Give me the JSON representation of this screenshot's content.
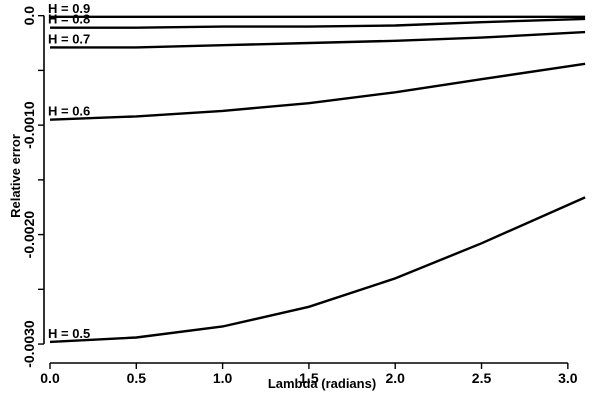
{
  "chart_data": {
    "type": "line",
    "title": "",
    "xlabel": "Lambda (radians)",
    "ylabel": "Relative error",
    "xlim": [
      0,
      3.14
    ],
    "ylim": [
      -0.0031,
      7e-05
    ],
    "x_ticks": [
      0.0,
      0.5,
      1.0,
      1.5,
      2.0,
      2.5,
      3.0
    ],
    "x_tick_labels": [
      "0.0",
      "0.5",
      "1.0",
      "1.5",
      "2.0",
      "2.5",
      "3.0"
    ],
    "y_ticks": [
      0.0,
      -0.0005,
      -0.001,
      -0.0015,
      -0.002,
      -0.0025,
      -0.003
    ],
    "y_tick_labels": [
      "0.0",
      "",
      "-0.0010",
      "",
      "-0.0020",
      "",
      "-0.0030"
    ],
    "grid": false,
    "legend": "none",
    "series": [
      {
        "name": "H = 0.9",
        "x": [
          0.0,
          0.5,
          1.0,
          1.5,
          2.0,
          2.5,
          3.1
        ],
        "y": [
          -1e-05,
          -1e-05,
          -1e-05,
          -1e-05,
          -1e-05,
          -1e-05,
          -1e-05
        ]
      },
      {
        "name": "H = 0.8",
        "x": [
          0.0,
          0.5,
          1.0,
          1.5,
          2.0,
          2.5,
          3.1
        ],
        "y": [
          -0.00011,
          -0.00011,
          -0.0001,
          -0.0001,
          -9e-05,
          -6e-05,
          -3e-05
        ]
      },
      {
        "name": "H = 0.7",
        "x": [
          0.0,
          0.5,
          1.0,
          1.5,
          2.0,
          2.5,
          3.1
        ],
        "y": [
          -0.00029,
          -0.00029,
          -0.00027,
          -0.00025,
          -0.00023,
          -0.0002,
          -0.00015
        ]
      },
      {
        "name": "H = 0.6",
        "x": [
          0.0,
          0.5,
          1.0,
          1.5,
          2.0,
          2.5,
          3.1
        ],
        "y": [
          -0.00095,
          -0.00092,
          -0.00087,
          -0.0008,
          -0.0007,
          -0.00058,
          -0.00044
        ]
      },
      {
        "name": "H = 0.5",
        "x": [
          0.0,
          0.5,
          1.0,
          1.5,
          2.0,
          2.5,
          3.1
        ],
        "y": [
          -0.00298,
          -0.00294,
          -0.00284,
          -0.00266,
          -0.0024,
          -0.00208,
          -0.00166
        ]
      }
    ]
  }
}
